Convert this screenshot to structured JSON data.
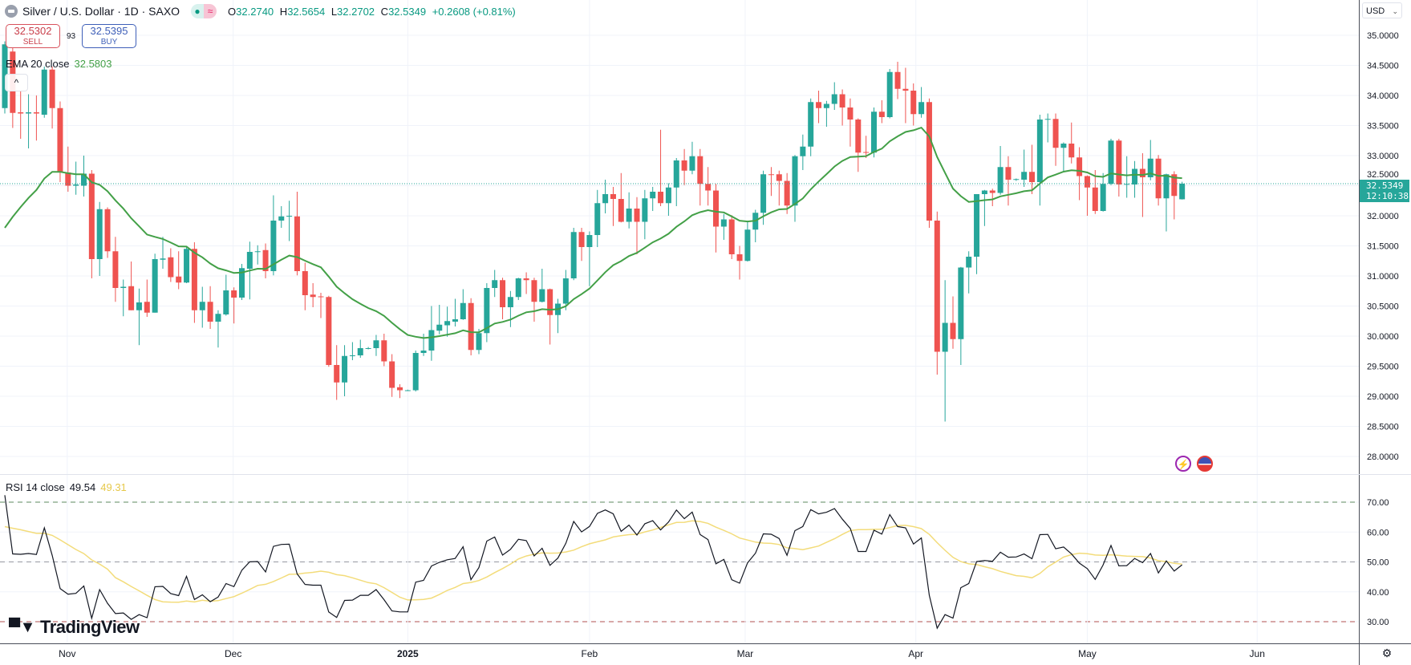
{
  "header": {
    "title": "Silver / U.S. Dollar · 1D · SAXO",
    "status_dot": "●",
    "status_wave": "≈",
    "ohlc": {
      "o_label": "O",
      "o": "32.2740",
      "h_label": "H",
      "h": "32.5654",
      "l_label": "L",
      "l": "32.2702",
      "c_label": "C",
      "c": "32.5349",
      "change": "+0.2608 (+0.81%)"
    }
  },
  "trade": {
    "sell_price": "32.5302",
    "sell_label": "SELL",
    "spread": "93",
    "buy_price": "32.5395",
    "buy_label": "BUY"
  },
  "collapse_icon": "^",
  "currency": "USD",
  "last_price": {
    "value": "32.5349",
    "countdown": "12:10:38"
  },
  "branding": {
    "logo_text": "TradingView",
    "logo_mark": "TV"
  },
  "icons": [
    "silver-symbol-icon",
    "lightning-event-icon",
    "us-flag-event-icon",
    "settings-icon",
    "chevron-down-icon"
  ],
  "colors": {
    "up": "#26a69a",
    "down": "#ef5350",
    "ema": "#43a047",
    "rsi": "#131722",
    "rsi_ma": "#f3dc7a",
    "grid": "#f0f3fa"
  },
  "chart_data": [
    {
      "type": "candlestick",
      "title": "Silver / U.S. Dollar · 1D · SAXO",
      "ylim": [
        27.8,
        35.2
      ],
      "y_ticks": [
        "35.0000",
        "34.5000",
        "34.0000",
        "33.5000",
        "33.0000",
        "32.5000",
        "32.0000",
        "31.5000",
        "31.0000",
        "30.5000",
        "30.0000",
        "29.5000",
        "29.0000",
        "28.5000",
        "28.0000"
      ],
      "x_ticks": [
        "Nov",
        "Dec",
        "2025",
        "Feb",
        "Mar",
        "Apr",
        "May",
        "Jun"
      ],
      "indicator": {
        "label": "EMA 20 close",
        "value": "32.5803"
      },
      "ohlc": [
        [
          33.79,
          34.9,
          33.7,
          34.85
        ],
        [
          34.73,
          34.8,
          33.46,
          33.71
        ],
        [
          33.72,
          34.08,
          33.28,
          33.7
        ],
        [
          33.7,
          34.02,
          33.12,
          33.72
        ],
        [
          33.72,
          34.0,
          33.25,
          33.7
        ],
        [
          33.68,
          34.48,
          33.63,
          34.43
        ],
        [
          34.43,
          34.48,
          33.45,
          33.79
        ],
        [
          33.79,
          33.9,
          32.56,
          32.72
        ],
        [
          32.72,
          33.15,
          32.4,
          32.5
        ],
        [
          32.5,
          32.9,
          32.35,
          32.52
        ],
        [
          32.5,
          33.0,
          32.32,
          32.7
        ],
        [
          32.7,
          32.76,
          30.96,
          31.28
        ],
        [
          31.28,
          32.23,
          31.0,
          32.11
        ],
        [
          32.11,
          32.14,
          31.3,
          31.41
        ],
        [
          31.41,
          31.65,
          30.57,
          30.8
        ],
        [
          30.8,
          30.94,
          30.33,
          30.82
        ],
        [
          30.83,
          31.24,
          30.43,
          30.43
        ],
        [
          30.43,
          30.79,
          29.85,
          30.56
        ],
        [
          30.57,
          30.94,
          30.32,
          30.39
        ],
        [
          30.39,
          31.37,
          30.39,
          31.28
        ],
        [
          31.27,
          31.65,
          31.12,
          31.29
        ],
        [
          31.31,
          31.46,
          30.9,
          30.98
        ],
        [
          30.99,
          31.41,
          30.78,
          30.89
        ],
        [
          30.89,
          31.5,
          30.88,
          31.45
        ],
        [
          31.45,
          31.56,
          30.22,
          30.43
        ],
        [
          30.43,
          30.82,
          30.14,
          30.57
        ],
        [
          30.57,
          30.83,
          30.12,
          30.24
        ],
        [
          30.24,
          30.43,
          29.81,
          30.37
        ],
        [
          30.36,
          31.02,
          30.34,
          30.76
        ],
        [
          30.76,
          30.81,
          30.21,
          30.64
        ],
        [
          30.64,
          31.2,
          30.6,
          31.13
        ],
        [
          31.12,
          31.57,
          30.61,
          31.4
        ],
        [
          31.4,
          31.51,
          31.19,
          31.41
        ],
        [
          31.43,
          31.54,
          30.96,
          31.08
        ],
        [
          31.08,
          32.34,
          31.01,
          31.92
        ],
        [
          31.92,
          32.16,
          31.8,
          31.99
        ],
        [
          31.99,
          32.25,
          31.58,
          32.0
        ],
        [
          31.99,
          32.4,
          31.01,
          31.08
        ],
        [
          31.08,
          31.22,
          30.43,
          30.68
        ],
        [
          30.69,
          30.88,
          30.48,
          30.65
        ],
        [
          30.66,
          30.72,
          30.3,
          30.65
        ],
        [
          30.65,
          30.67,
          29.49,
          29.52
        ],
        [
          29.52,
          29.85,
          28.94,
          29.23
        ],
        [
          29.23,
          29.85,
          29.0,
          29.67
        ],
        [
          29.67,
          29.9,
          29.6,
          29.68
        ],
        [
          29.68,
          29.94,
          29.64,
          29.8
        ],
        [
          29.8,
          29.82,
          29.78,
          29.8
        ],
        [
          29.8,
          30.02,
          29.67,
          29.93
        ],
        [
          29.93,
          30.04,
          29.5,
          29.58
        ],
        [
          29.58,
          29.7,
          28.99,
          29.14
        ],
        [
          29.15,
          29.2,
          28.97,
          29.1
        ],
        [
          29.1,
          29.11,
          29.09,
          29.1
        ],
        [
          29.1,
          29.76,
          29.08,
          29.72
        ],
        [
          29.72,
          30.04,
          29.67,
          29.76
        ],
        [
          29.76,
          30.5,
          29.59,
          30.1
        ],
        [
          30.09,
          30.52,
          30.03,
          30.19
        ],
        [
          30.18,
          30.49,
          29.99,
          30.25
        ],
        [
          30.24,
          30.62,
          30.16,
          30.28
        ],
        [
          30.28,
          30.78,
          30.27,
          30.55
        ],
        [
          30.55,
          30.63,
          29.68,
          29.77
        ],
        [
          29.77,
          30.12,
          29.7,
          30.05
        ],
        [
          30.05,
          30.88,
          29.9,
          30.8
        ],
        [
          30.8,
          31.1,
          30.65,
          30.93
        ],
        [
          30.93,
          30.97,
          30.28,
          30.48
        ],
        [
          30.48,
          30.75,
          30.15,
          30.65
        ],
        [
          30.65,
          30.97,
          30.6,
          30.96
        ],
        [
          30.96,
          31.06,
          30.7,
          30.93
        ],
        [
          30.93,
          30.97,
          30.24,
          30.57
        ],
        [
          30.57,
          31.12,
          30.56,
          30.78
        ],
        [
          30.78,
          30.79,
          29.86,
          30.35
        ],
        [
          30.35,
          30.62,
          30.05,
          30.54
        ],
        [
          30.54,
          31.1,
          30.43,
          30.96
        ],
        [
          30.96,
          31.8,
          30.93,
          31.73
        ],
        [
          31.73,
          31.8,
          31.25,
          31.48
        ],
        [
          31.48,
          31.74,
          30.83,
          31.68
        ],
        [
          31.68,
          32.43,
          31.48,
          32.21
        ],
        [
          32.21,
          32.6,
          32.04,
          32.36
        ],
        [
          32.36,
          32.48,
          31.83,
          32.28
        ],
        [
          32.28,
          32.71,
          31.89,
          31.9
        ],
        [
          31.9,
          32.39,
          31.79,
          32.12
        ],
        [
          32.12,
          32.31,
          31.36,
          31.9
        ],
        [
          31.9,
          32.43,
          31.61,
          32.29
        ],
        [
          32.29,
          32.48,
          32.08,
          32.4
        ],
        [
          32.4,
          33.43,
          32.16,
          32.21
        ],
        [
          32.21,
          32.54,
          32.0,
          32.47
        ],
        [
          32.47,
          32.96,
          32.16,
          32.92
        ],
        [
          32.92,
          33.11,
          32.51,
          32.75
        ],
        [
          32.75,
          33.23,
          32.69,
          32.99
        ],
        [
          32.99,
          33.11,
          32.17,
          32.53
        ],
        [
          32.53,
          32.81,
          32.17,
          32.42
        ],
        [
          32.42,
          32.53,
          31.39,
          31.82
        ],
        [
          31.82,
          32.03,
          31.6,
          31.94
        ],
        [
          31.94,
          32.01,
          31.28,
          31.36
        ],
        [
          31.36,
          31.5,
          30.94,
          31.25
        ],
        [
          31.25,
          31.92,
          31.24,
          31.77
        ],
        [
          31.77,
          32.1,
          31.56,
          32.05
        ],
        [
          32.05,
          32.75,
          31.85,
          32.69
        ],
        [
          32.69,
          32.81,
          32.33,
          32.68
        ],
        [
          32.69,
          32.75,
          32.17,
          32.58
        ],
        [
          32.58,
          32.71,
          32.03,
          32.17
        ],
        [
          32.17,
          33.01,
          31.9,
          32.99
        ],
        [
          32.99,
          33.35,
          32.76,
          33.15
        ],
        [
          33.15,
          33.95,
          32.99,
          33.89
        ],
        [
          33.89,
          34.08,
          33.54,
          33.79
        ],
        [
          33.79,
          33.91,
          33.48,
          33.86
        ],
        [
          33.86,
          34.22,
          33.76,
          34.02
        ],
        [
          34.02,
          34.1,
          33.5,
          33.8
        ],
        [
          33.8,
          33.95,
          33.15,
          33.6
        ],
        [
          33.6,
          33.62,
          32.73,
          33.05
        ],
        [
          33.06,
          33.33,
          32.96,
          33.05
        ],
        [
          33.05,
          33.8,
          32.97,
          33.73
        ],
        [
          33.73,
          33.92,
          33.54,
          33.64
        ],
        [
          33.64,
          34.44,
          33.62,
          34.39
        ],
        [
          34.39,
          34.56,
          33.94,
          34.11
        ],
        [
          34.11,
          34.46,
          33.54,
          34.08
        ],
        [
          34.08,
          34.2,
          33.5,
          33.69
        ],
        [
          33.69,
          34.14,
          33.63,
          33.89
        ],
        [
          33.89,
          33.95,
          31.8,
          31.92
        ],
        [
          31.92,
          32.07,
          29.36,
          29.74
        ],
        [
          29.74,
          30.93,
          28.58,
          30.22
        ],
        [
          30.22,
          30.66,
          29.79,
          29.95
        ],
        [
          29.95,
          31.15,
          29.52,
          31.14
        ],
        [
          31.14,
          31.41,
          30.71,
          31.32
        ],
        [
          31.32,
          32.36,
          31.03,
          32.36
        ],
        [
          32.36,
          32.43,
          31.83,
          32.42
        ],
        [
          32.42,
          32.45,
          32.16,
          32.38
        ],
        [
          32.38,
          33.16,
          32.35,
          32.81
        ],
        [
          32.81,
          32.99,
          32.17,
          32.6
        ],
        [
          32.6,
          32.62,
          32.58,
          32.61
        ],
        [
          32.6,
          33.1,
          32.48,
          32.73
        ],
        [
          32.73,
          33.18,
          32.36,
          32.56
        ],
        [
          32.56,
          33.68,
          32.17,
          33.6
        ],
        [
          33.6,
          33.7,
          33.22,
          33.61
        ],
        [
          33.61,
          33.7,
          32.83,
          33.13
        ],
        [
          33.13,
          33.22,
          32.74,
          33.2
        ],
        [
          33.2,
          33.55,
          32.87,
          32.97
        ],
        [
          32.97,
          33.14,
          32.26,
          32.66
        ],
        [
          32.66,
          32.67,
          32.0,
          32.47
        ],
        [
          32.47,
          32.76,
          32.03,
          32.08
        ],
        [
          32.08,
          32.71,
          32.07,
          32.53
        ],
        [
          32.53,
          33.28,
          32.51,
          33.25
        ],
        [
          33.25,
          33.28,
          32.32,
          32.52
        ],
        [
          32.52,
          32.99,
          32.3,
          32.53
        ],
        [
          32.52,
          32.91,
          32.3,
          32.78
        ],
        [
          32.78,
          33.04,
          31.98,
          32.64
        ],
        [
          32.64,
          33.26,
          32.59,
          32.95
        ],
        [
          32.95,
          33.01,
          32.17,
          32.29
        ],
        [
          32.29,
          32.7,
          31.74,
          32.69
        ],
        [
          32.69,
          32.74,
          31.94,
          32.33
        ],
        [
          32.274,
          32.5654,
          32.2702,
          32.5349
        ]
      ]
    },
    {
      "type": "line",
      "indicator": {
        "label": "RSI 14 close",
        "value": "49.54",
        "ma_value": "49.31"
      },
      "ylim": [
        25,
        77
      ],
      "y_ticks": [
        "70.00",
        "60.00",
        "50.00",
        "40.00",
        "30.00"
      ],
      "bands": [
        70,
        50,
        30
      ]
    }
  ]
}
